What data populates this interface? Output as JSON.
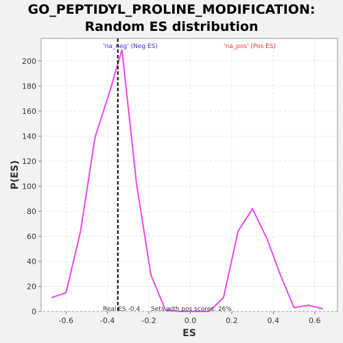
{
  "chart_data": {
    "type": "line",
    "title_lines": [
      "GO_PEPTIDYL_PROLINE_MODIFICATION:",
      "Random ES distribution"
    ],
    "xlabel": "ES",
    "ylabel": "P(ES)",
    "xlim": [
      -0.72,
      0.71
    ],
    "ylim": [
      0,
      218
    ],
    "xticks": [
      -0.6,
      -0.4,
      -0.2,
      0.0,
      0.2,
      0.4,
      0.6
    ],
    "xtick_labels": [
      "-0.6",
      "-0.4",
      "-0.2",
      "0.0",
      "0.2",
      "0.4",
      "0.6"
    ],
    "yticks": [
      0,
      20,
      40,
      60,
      80,
      100,
      120,
      140,
      160,
      180,
      200
    ],
    "ytick_labels": [
      "0",
      "20",
      "40",
      "60",
      "80",
      "100",
      "120",
      "140",
      "160",
      "180",
      "200"
    ],
    "grid": true,
    "series": [
      {
        "color": "#ee44ee",
        "x": [
          -0.67,
          -0.6,
          -0.53,
          -0.46,
          -0.39,
          -0.33,
          -0.26,
          -0.19,
          -0.12,
          -0.05,
          0.02,
          0.09,
          0.16,
          0.23,
          0.3,
          0.37,
          0.43,
          0.5,
          0.57,
          0.64
        ],
        "y": [
          11,
          15,
          64,
          139,
          175,
          209,
          102,
          29,
          1,
          0,
          0,
          0,
          11,
          64,
          82,
          58,
          31,
          3,
          5,
          2
        ]
      }
    ],
    "real_es": -0.35,
    "annotations": {
      "neg_label": "'na_neg' (Neg ES)",
      "pos_label": "'na_pos' (Pos ES)",
      "neg_color": "#3333cc",
      "pos_color": "#ee3333",
      "real_es_text": "Real ES -0.4",
      "sets_text": "Sets with pos scores: 26%"
    }
  }
}
